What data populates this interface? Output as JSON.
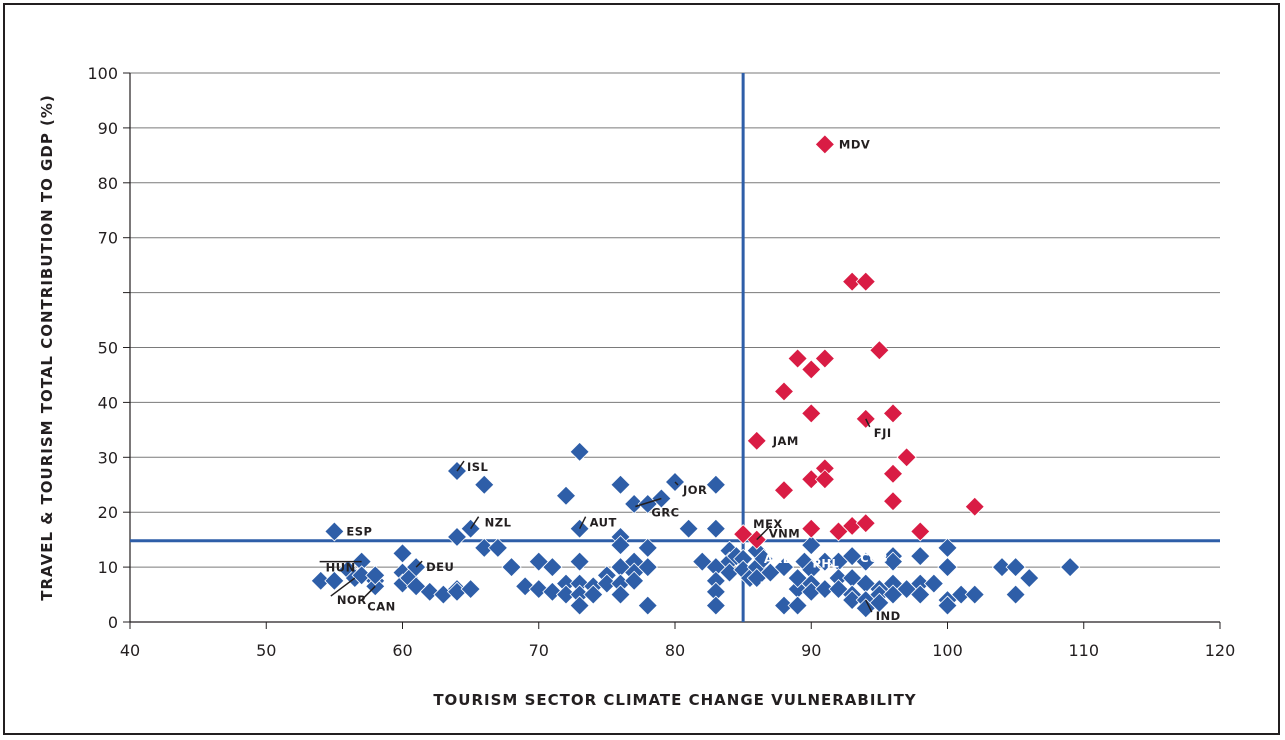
{
  "chart_data": {
    "type": "scatter",
    "title": "",
    "xlabel": "TOURISM SECTOR CLIMATE CHANGE VULNERABILITY",
    "ylabel": "TRAVEL & TOURISM TOTAL CONTRIBUTION TO GDP (%)",
    "xlim": [
      40,
      120
    ],
    "ylim": [
      0,
      100
    ],
    "x_ticks": [
      40,
      50,
      60,
      70,
      80,
      90,
      100,
      110,
      120
    ],
    "y_ticks": [
      0,
      10,
      20,
      30,
      40,
      50,
      60,
      70,
      80,
      90,
      100
    ],
    "y_tick_labels": [
      "0",
      "10",
      "20",
      "30",
      "40",
      "50",
      "",
      "70",
      "80",
      "90",
      "100"
    ],
    "grid": "horizontal",
    "reference_lines": {
      "x": 85,
      "y": 14.8
    },
    "colors": {
      "low": "#2e5ea8",
      "high": "#d91c44",
      "reference": "#2e5ea8",
      "grid": "#7a7a7a"
    },
    "series": [
      {
        "color": "#2e5ea8",
        "points": [
          [
            54,
            7.5
          ],
          [
            55,
            16.5
          ],
          [
            55,
            7.5
          ],
          [
            56,
            9.5
          ],
          [
            56.5,
            8
          ],
          [
            57,
            11
          ],
          [
            57,
            8.5
          ],
          [
            58,
            7.5
          ],
          [
            58,
            6.5
          ],
          [
            58,
            8.5
          ],
          [
            60,
            12.5
          ],
          [
            60,
            9
          ],
          [
            60,
            7
          ],
          [
            60.5,
            8
          ],
          [
            61,
            10
          ],
          [
            61,
            6.5
          ],
          [
            62,
            5.5
          ],
          [
            63,
            5
          ],
          [
            64,
            6
          ],
          [
            64,
            5.5
          ],
          [
            64,
            15.5
          ],
          [
            64,
            27.5
          ],
          [
            65,
            6
          ],
          [
            65,
            17
          ],
          [
            66,
            25
          ],
          [
            66,
            13.5
          ],
          [
            67,
            13.5
          ],
          [
            68,
            10
          ],
          [
            69,
            6.5
          ],
          [
            70,
            11
          ],
          [
            70,
            6
          ],
          [
            71,
            10
          ],
          [
            71,
            5.5
          ],
          [
            72,
            7
          ],
          [
            72,
            5
          ],
          [
            72,
            23
          ],
          [
            73,
            31
          ],
          [
            73,
            17
          ],
          [
            73,
            11
          ],
          [
            73,
            7
          ],
          [
            73,
            5
          ],
          [
            73,
            3
          ],
          [
            74,
            6.5
          ],
          [
            74,
            5
          ],
          [
            75,
            8.5
          ],
          [
            75,
            7
          ],
          [
            76,
            15.5
          ],
          [
            76,
            25
          ],
          [
            76,
            14
          ],
          [
            76,
            10
          ],
          [
            76,
            7
          ],
          [
            76,
            5
          ],
          [
            77,
            21.5
          ],
          [
            77,
            11
          ],
          [
            77,
            9
          ],
          [
            77,
            7.5
          ],
          [
            78,
            13.5
          ],
          [
            78,
            21.5
          ],
          [
            78,
            10
          ],
          [
            78,
            3
          ],
          [
            79,
            22.5
          ],
          [
            80,
            25.5
          ],
          [
            81,
            17
          ],
          [
            82,
            11
          ],
          [
            83,
            25
          ],
          [
            83,
            17
          ],
          [
            83,
            10
          ],
          [
            83,
            7.5
          ],
          [
            83,
            5.5
          ],
          [
            83,
            3
          ],
          [
            84,
            13
          ],
          [
            84,
            11
          ],
          [
            84,
            9
          ],
          [
            84.5,
            12
          ],
          [
            85,
            11.5
          ],
          [
            85,
            9.5
          ],
          [
            85.5,
            8
          ],
          [
            86,
            10
          ],
          [
            86,
            13
          ],
          [
            86,
            8
          ],
          [
            86.5,
            11.5
          ],
          [
            87,
            9
          ],
          [
            88,
            10
          ],
          [
            88,
            3
          ],
          [
            89,
            6
          ],
          [
            89,
            8
          ],
          [
            89,
            3
          ],
          [
            89.5,
            11
          ],
          [
            90,
            14
          ],
          [
            90,
            9.5
          ],
          [
            90,
            7
          ],
          [
            90,
            5.5
          ],
          [
            91,
            11
          ],
          [
            91,
            6
          ],
          [
            92,
            11
          ],
          [
            92,
            8
          ],
          [
            92,
            6
          ],
          [
            93,
            12
          ],
          [
            93,
            8
          ],
          [
            93,
            5
          ],
          [
            93,
            4
          ],
          [
            94,
            11
          ],
          [
            94,
            7
          ],
          [
            94,
            4
          ],
          [
            94,
            2.5
          ],
          [
            95,
            6
          ],
          [
            95,
            5
          ],
          [
            95,
            3.5
          ],
          [
            96,
            12
          ],
          [
            96,
            11
          ],
          [
            96,
            7
          ],
          [
            96,
            5
          ],
          [
            97,
            6
          ],
          [
            98,
            12
          ],
          [
            98,
            7
          ],
          [
            98,
            5
          ],
          [
            99,
            7
          ],
          [
            100,
            13.5
          ],
          [
            100,
            10
          ],
          [
            100,
            4
          ],
          [
            100,
            3
          ],
          [
            101,
            5
          ],
          [
            102,
            5
          ],
          [
            104,
            10
          ],
          [
            105,
            10
          ],
          [
            105,
            5
          ],
          [
            106,
            8
          ],
          [
            109,
            10
          ]
        ]
      },
      {
        "color": "#d91c44",
        "points": [
          [
            91,
            87
          ],
          [
            93,
            62
          ],
          [
            94,
            62
          ],
          [
            89,
            48
          ],
          [
            91,
            48
          ],
          [
            95,
            49.5
          ],
          [
            90,
            46
          ],
          [
            88,
            42
          ],
          [
            90,
            38
          ],
          [
            96,
            38
          ],
          [
            94,
            37
          ],
          [
            86,
            33
          ],
          [
            97,
            30
          ],
          [
            91,
            28
          ],
          [
            90,
            26
          ],
          [
            91,
            26
          ],
          [
            96,
            27
          ],
          [
            88,
            24
          ],
          [
            96,
            22
          ],
          [
            102,
            21
          ],
          [
            90,
            17
          ],
          [
            92,
            16.5
          ],
          [
            93,
            17.5
          ],
          [
            94,
            18
          ],
          [
            98,
            16.5
          ],
          [
            85,
            16
          ],
          [
            86,
            15
          ]
        ]
      }
    ],
    "annotations": [
      {
        "text": "MDV",
        "x": 91,
        "y": 87
      },
      {
        "text": "JAM",
        "x": 86,
        "y": 33
      },
      {
        "text": "FJI",
        "x": 94,
        "y": 37
      },
      {
        "text": "MEX",
        "x": 85,
        "y": 16
      },
      {
        "text": "VNM",
        "x": 86,
        "y": 15
      },
      {
        "text": "ISL",
        "x": 64,
        "y": 27.5
      },
      {
        "text": "ESP",
        "x": 55,
        "y": 16.5
      },
      {
        "text": "NZL",
        "x": 65,
        "y": 17
      },
      {
        "text": "AUT",
        "x": 73,
        "y": 17
      },
      {
        "text": "JOR",
        "x": 80,
        "y": 25.5
      },
      {
        "text": "GRC",
        "x": 79,
        "y": 22.5
      },
      {
        "text": "HUN",
        "x": 57,
        "y": 11
      },
      {
        "text": "DEU",
        "x": 61,
        "y": 10
      },
      {
        "text": "NOR",
        "x": 56.5,
        "y": 8
      },
      {
        "text": "CAN",
        "x": 58,
        "y": 6.5
      },
      {
        "text": "ARE",
        "x": 85.5,
        "y": 11.5
      },
      {
        "text": "ZAF",
        "x": 85.5,
        "y": 8
      },
      {
        "text": "PHL",
        "x": 89.5,
        "y": 11
      },
      {
        "text": "CUB",
        "x": 93,
        "y": 12
      },
      {
        "text": "IND",
        "x": 94,
        "y": 4
      }
    ]
  }
}
